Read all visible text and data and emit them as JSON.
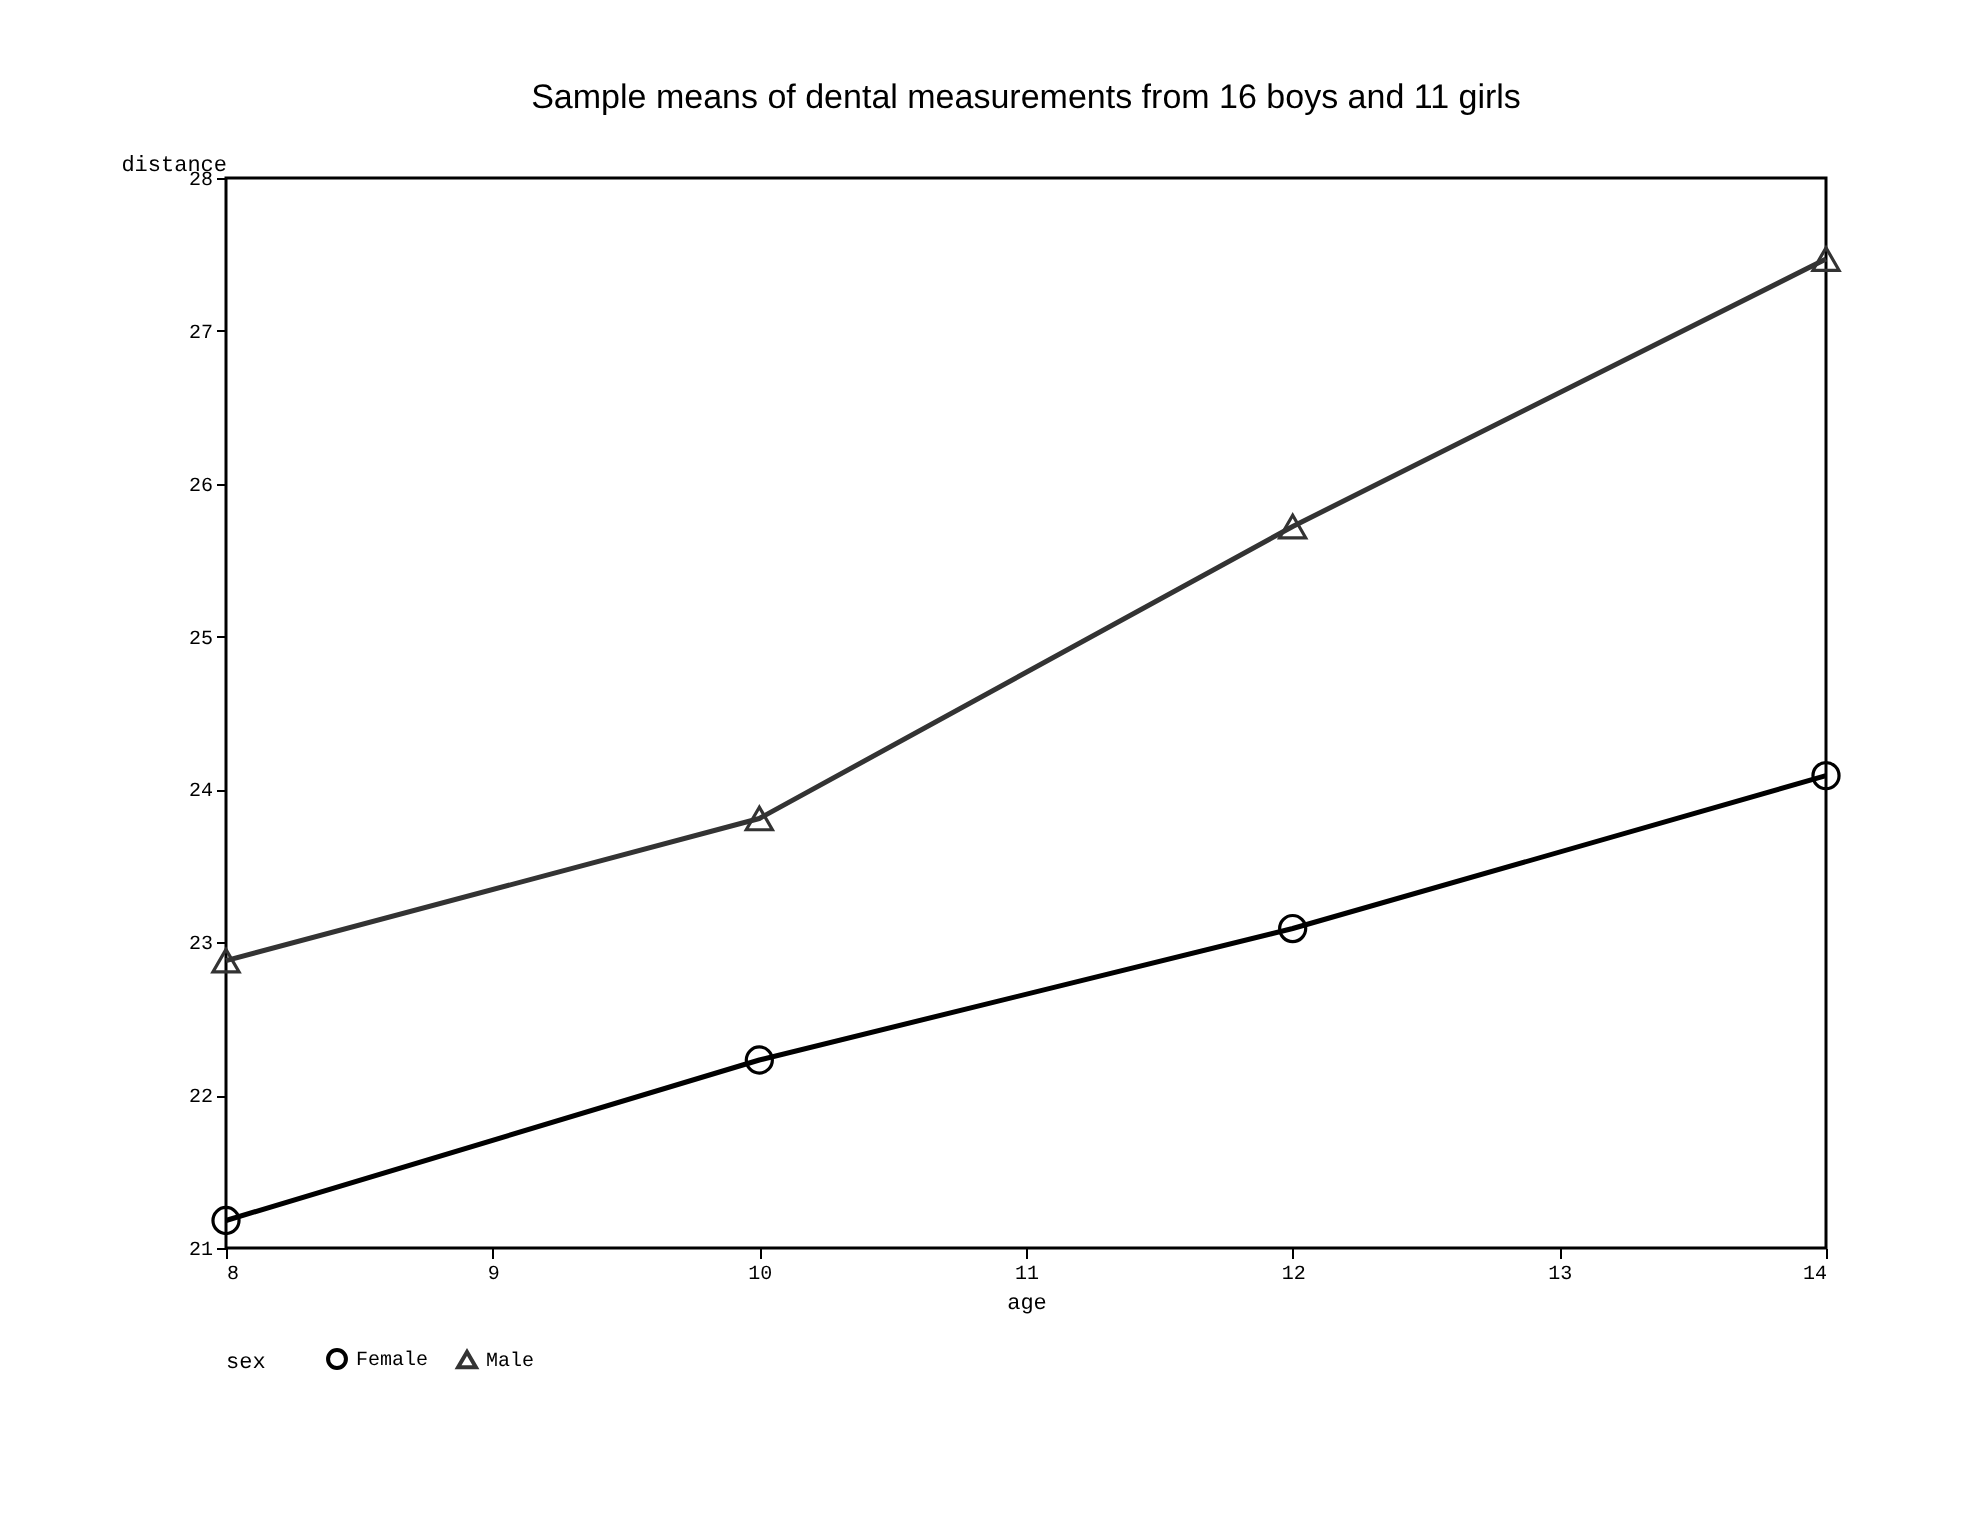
{
  "chart_data": {
    "type": "line",
    "title": "Sample means of dental measurements from 16 boys and 11 girls",
    "xlabel": "age",
    "ylabel": "distance",
    "legend_title": "sex",
    "x": [
      8,
      10,
      12,
      14
    ],
    "series": [
      {
        "name": "Female",
        "color": "#000000",
        "marker": "circle",
        "values": [
          21.18,
          22.23,
          23.09,
          24.09
        ]
      },
      {
        "name": "Male",
        "color": "#333333",
        "marker": "triangle",
        "values": [
          22.88,
          23.81,
          25.72,
          27.47
        ]
      }
    ],
    "xlim": [
      8,
      14
    ],
    "xticks": [
      8,
      9,
      10,
      11,
      12,
      13,
      14
    ],
    "ylim": [
      21,
      28
    ],
    "yticks": [
      21,
      22,
      23,
      24,
      25,
      26,
      27,
      28
    ],
    "grid": false,
    "legend": "bottom",
    "line_style": "solid"
  }
}
